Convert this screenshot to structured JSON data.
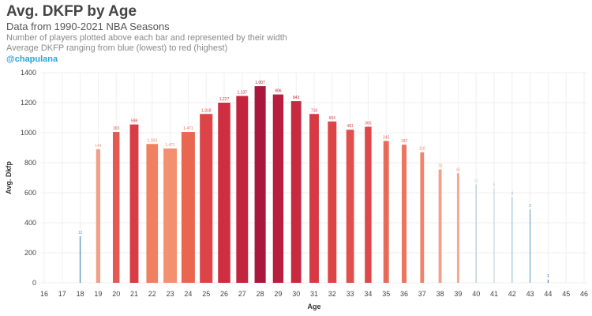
{
  "header": {
    "title": "Avg. DKFP by Age",
    "subtitle": "Data from 1990-2021 NBA Seasons",
    "note1": "Number of players plotted above each bar and represented by their width",
    "note2": "Average DKFP ranging from blue (lowest) to red (highest)",
    "handle": "@chapulana"
  },
  "chart_data": {
    "type": "bar",
    "xlabel": "Age",
    "ylabel": "Avg. Dkfp",
    "ylim": [
      0,
      1400
    ],
    "yticks": [
      0,
      200,
      400,
      600,
      800,
      1000,
      1200,
      1400
    ],
    "xticks": [
      16,
      17,
      18,
      19,
      20,
      21,
      22,
      23,
      24,
      25,
      26,
      27,
      28,
      29,
      30,
      31,
      32,
      33,
      34,
      35,
      36,
      37,
      38,
      39,
      40,
      41,
      42,
      43,
      44,
      45,
      46
    ],
    "grid": true,
    "bars": [
      {
        "age": 18,
        "value": 310,
        "count": "12",
        "color": "#6a9fc0"
      },
      {
        "age": 19,
        "value": 890,
        "count": "144",
        "color": "#f0a088"
      },
      {
        "age": 20,
        "value": 1005,
        "count": "365",
        "color": "#e25a52"
      },
      {
        "age": 21,
        "value": 1055,
        "count": "598",
        "color": "#d83c45"
      },
      {
        "age": 22,
        "value": 925,
        "count": "1,103",
        "color": "#f08060"
      },
      {
        "age": 23,
        "value": 895,
        "count": "1,471",
        "color": "#f29070"
      },
      {
        "age": 24,
        "value": 1005,
        "count": "1,471",
        "color": "#e96650"
      },
      {
        "age": 25,
        "value": 1125,
        "count": "1,318",
        "color": "#dd4448"
      },
      {
        "age": 26,
        "value": 1200,
        "count": "1,227",
        "color": "#cf2e40"
      },
      {
        "age": 27,
        "value": 1245,
        "count": "1,137",
        "color": "#c2253d"
      },
      {
        "age": 28,
        "value": 1310,
        "count": "1,007",
        "color": "#a8183c"
      },
      {
        "age": 29,
        "value": 1255,
        "count": "906",
        "color": "#b81e3e"
      },
      {
        "age": 30,
        "value": 1210,
        "count": "843",
        "color": "#c72a40"
      },
      {
        "age": 31,
        "value": 1125,
        "count": "716",
        "color": "#d63a44"
      },
      {
        "age": 32,
        "value": 1075,
        "count": "604",
        "color": "#dc4448"
      },
      {
        "age": 33,
        "value": 1020,
        "count": "481",
        "color": "#e14e4c"
      },
      {
        "age": 34,
        "value": 1040,
        "count": "365",
        "color": "#de484a"
      },
      {
        "age": 35,
        "value": 945,
        "count": "245",
        "color": "#ea6a58"
      },
      {
        "age": 36,
        "value": 920,
        "count": "182",
        "color": "#ec7460"
      },
      {
        "age": 37,
        "value": 870,
        "count": "118",
        "color": "#f08468"
      },
      {
        "age": 38,
        "value": 755,
        "count": "78",
        "color": "#f2a088"
      },
      {
        "age": 39,
        "value": 730,
        "count": "45",
        "color": "#f4a894"
      },
      {
        "age": 40,
        "value": 655,
        "count": "15",
        "color": "#c9d4dc"
      },
      {
        "age": 41,
        "value": 630,
        "count": "5",
        "color": "#b8ccd8"
      },
      {
        "age": 42,
        "value": 570,
        "count": "4",
        "color": "#90b8d2"
      },
      {
        "age": 43,
        "value": 490,
        "count": "2",
        "color": "#5e9ac2"
      },
      {
        "age": 44,
        "value": 20,
        "count": "1",
        "color": "#2f6fa8"
      }
    ]
  }
}
